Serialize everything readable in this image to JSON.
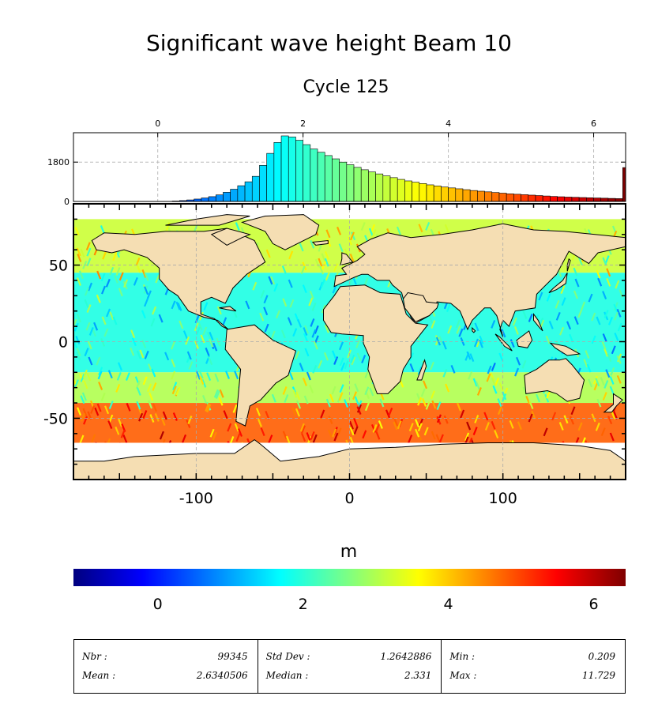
{
  "title": "Significant wave height Beam 10",
  "subtitle": "Cycle 125",
  "colorbar": {
    "unit": "m",
    "ticks": [
      "0",
      "2",
      "4",
      "6"
    ],
    "tick_values": [
      0,
      2,
      4,
      6
    ],
    "range": [
      -1.16,
      6.44
    ],
    "colormap": [
      "#00007f",
      "#0000ff",
      "#0080ff",
      "#00ffff",
      "#80ff80",
      "#ffff00",
      "#ff8000",
      "#ff0000",
      "#7f0000"
    ]
  },
  "stats": {
    "nbr_label": "Nbr :",
    "nbr_value": "99345",
    "mean_label": "Mean :",
    "mean_value": "2.6340506",
    "std_label": "Std Dev :",
    "std_value": "1.2642886",
    "median_label": "Median :",
    "median_value": "2.331",
    "min_label": "Min :",
    "min_value": "0.209",
    "max_label": "Max :",
    "max_value": "11.729"
  },
  "chart_data": [
    {
      "type": "bar",
      "name": "histogram",
      "xticks": [
        "0",
        "2",
        "4",
        "6"
      ],
      "xtick_values": [
        0,
        2,
        4,
        6
      ],
      "yticks": [
        "0",
        "1800"
      ],
      "ytick_values": [
        0,
        1800
      ],
      "xlim": [
        -1.16,
        6.44
      ],
      "ylim": [
        0,
        3000
      ],
      "bin_start": [
        0.2,
        0.3,
        0.4,
        0.5,
        0.6,
        0.7,
        0.8,
        0.9,
        1.0,
        1.1,
        1.2,
        1.3,
        1.4,
        1.5,
        1.6,
        1.7,
        1.8,
        1.9,
        2.0,
        2.1,
        2.2,
        2.3,
        2.4,
        2.5,
        2.6,
        2.7,
        2.8,
        2.9,
        3.0,
        3.1,
        3.2,
        3.3,
        3.4,
        3.5,
        3.6,
        3.7,
        3.8,
        3.9,
        4.0,
        4.1,
        4.2,
        4.3,
        4.4,
        4.5,
        4.6,
        4.7,
        4.8,
        4.9,
        5.0,
        5.1,
        5.2,
        5.3,
        5.4,
        5.5,
        5.6,
        5.7,
        5.8,
        5.9,
        6.0,
        6.1,
        6.2,
        6.3,
        6.4
      ],
      "bin_width": 0.1,
      "values": [
        20,
        40,
        70,
        110,
        160,
        220,
        300,
        420,
        560,
        720,
        900,
        1150,
        1650,
        2200,
        2700,
        3000,
        2950,
        2800,
        2600,
        2400,
        2250,
        2100,
        1950,
        1800,
        1680,
        1560,
        1450,
        1350,
        1260,
        1170,
        1090,
        1010,
        940,
        880,
        820,
        760,
        710,
        660,
        620,
        580,
        540,
        500,
        470,
        440,
        410,
        380,
        350,
        330,
        310,
        290,
        270,
        250,
        230,
        215,
        200,
        190,
        180,
        170,
        160,
        150,
        140,
        130,
        1550
      ]
    },
    {
      "type": "heatmap",
      "name": "map",
      "xticks": [
        "-100",
        "0",
        "100"
      ],
      "xtick_values": [
        -100,
        0,
        100
      ],
      "yticks": [
        "50",
        "0",
        "-50"
      ],
      "ytick_values": [
        50,
        0,
        -50
      ],
      "xlim": [
        -180,
        180
      ],
      "ylim": [
        -90,
        90
      ],
      "value_range": [
        -1.16,
        6.44
      ],
      "zones": [
        {
          "lat_range": [
            45,
            80
          ],
          "value": 3.2
        },
        {
          "lat_range": [
            -20,
            45
          ],
          "value": 1.9
        },
        {
          "lat_range": [
            -40,
            -20
          ],
          "value": 3.0
        },
        {
          "lat_range": [
            -70,
            -40
          ],
          "value": 4.8
        }
      ]
    }
  ]
}
